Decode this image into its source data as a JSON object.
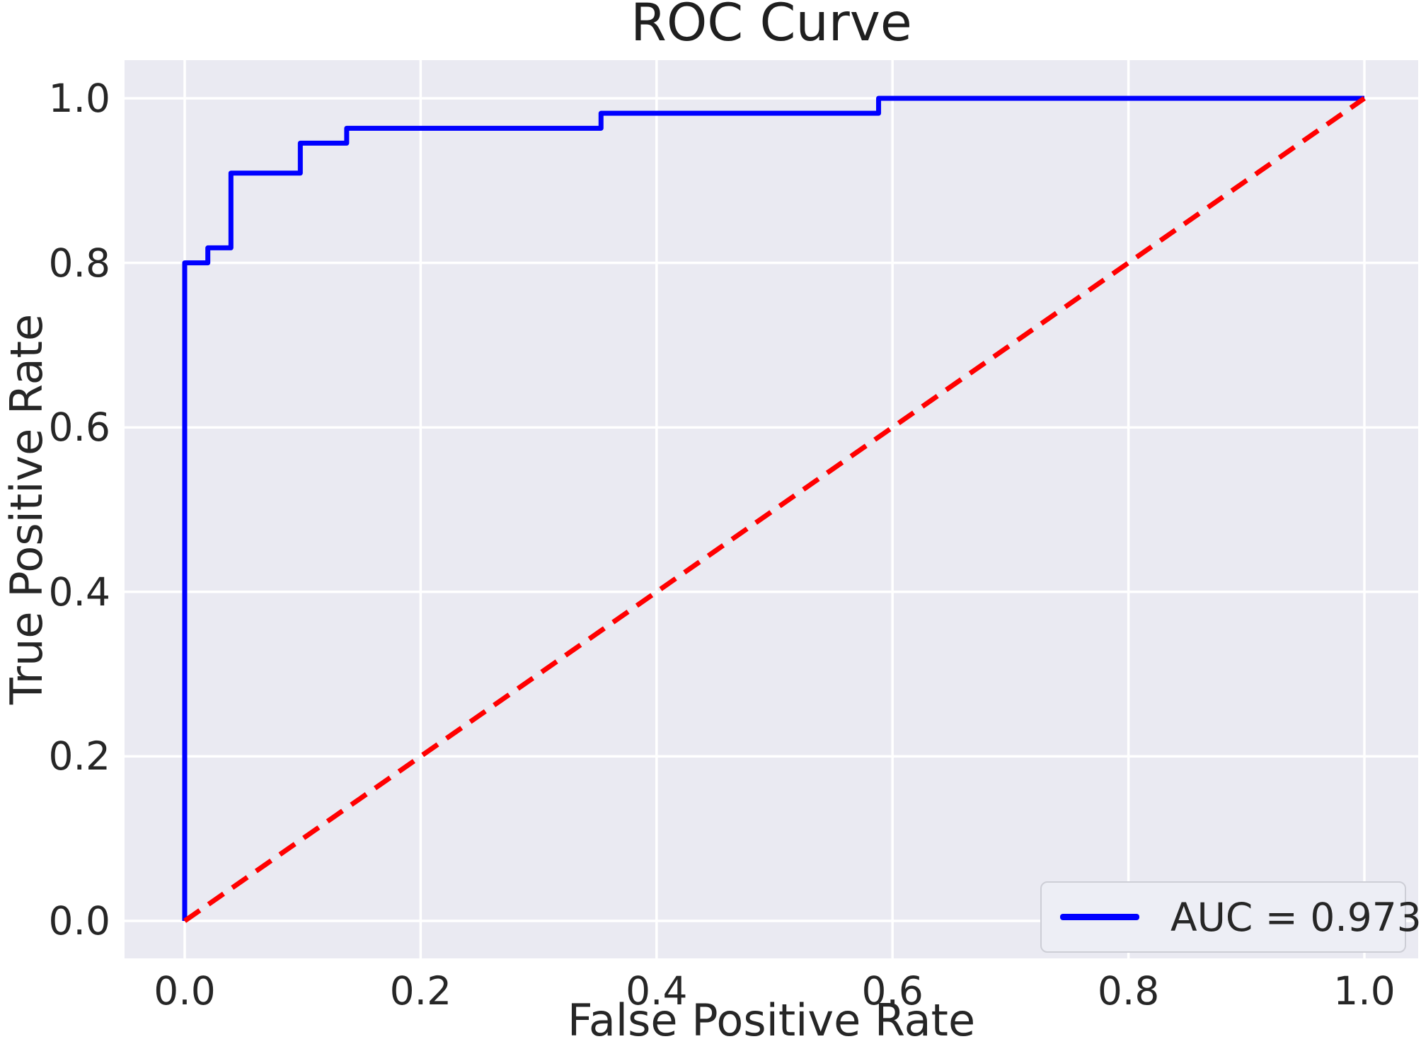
{
  "chart_data": {
    "type": "line",
    "title": "ROC Curve",
    "xlabel": "False Positive Rate",
    "ylabel": "True Positive Rate",
    "xtick_labels": [
      "0.0",
      "0.2",
      "0.4",
      "0.6",
      "0.8",
      "1.0"
    ],
    "ytick_labels": [
      "0.0",
      "0.2",
      "0.4",
      "0.6",
      "0.8",
      "1.0"
    ],
    "xlim": [
      -0.051,
      1.046
    ],
    "ylim": [
      -0.046,
      1.046
    ],
    "grid": true,
    "background_color": "#eaeaf2",
    "gridline_color": "#ffffff",
    "text_color": "#262626",
    "series": [
      {
        "name": "roc-curve",
        "color": "#0000ff",
        "style": "solid",
        "line_width": 7,
        "points": [
          [
            0.0,
            0.0
          ],
          [
            0.0,
            0.8
          ],
          [
            0.0196,
            0.8
          ],
          [
            0.0196,
            0.8182
          ],
          [
            0.0392,
            0.8182
          ],
          [
            0.0392,
            0.9091
          ],
          [
            0.098,
            0.9091
          ],
          [
            0.098,
            0.9455
          ],
          [
            0.1373,
            0.9455
          ],
          [
            0.1373,
            0.9636
          ],
          [
            0.3529,
            0.9636
          ],
          [
            0.3529,
            0.9818
          ],
          [
            0.5882,
            0.9818
          ],
          [
            0.5882,
            1.0
          ],
          [
            1.0,
            1.0
          ]
        ]
      },
      {
        "name": "chance-diagonal",
        "color": "#ff0000",
        "style": "dashed",
        "line_width": 7,
        "points": [
          [
            0.0,
            0.0
          ],
          [
            1.0,
            1.0
          ]
        ]
      }
    ],
    "legend": {
      "position": "lower right",
      "label": "AUC = 0.973",
      "line_color": "#0000ff"
    }
  }
}
